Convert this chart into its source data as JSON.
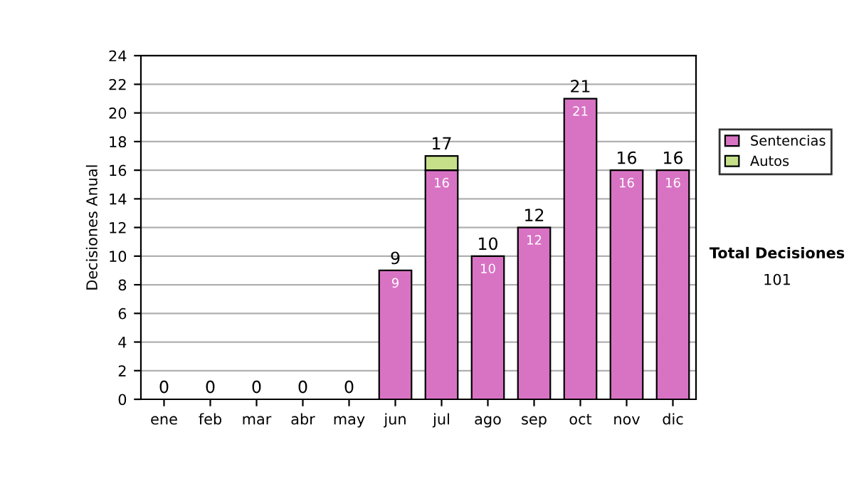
{
  "chart_data": {
    "type": "bar",
    "ylabel": "Decisiones Anual",
    "categories": [
      "ene",
      "feb",
      "mar",
      "abr",
      "may",
      "jun",
      "jul",
      "ago",
      "sep",
      "oct",
      "nov",
      "dic"
    ],
    "stacked": true,
    "series": [
      {
        "name": "Sentencias",
        "color": "#d873c4",
        "values": [
          0,
          0,
          0,
          0,
          0,
          9,
          16,
          10,
          12,
          21,
          16,
          16
        ],
        "value_labels": [
          null,
          null,
          null,
          null,
          null,
          "9",
          "16",
          "10",
          "12",
          "21",
          "16",
          "16"
        ]
      },
      {
        "name": "Autos",
        "color": "#c6e08a",
        "values": [
          0,
          0,
          0,
          0,
          0,
          0,
          1,
          0,
          0,
          0,
          0,
          0
        ]
      }
    ],
    "totals": [
      "0",
      "0",
      "0",
      "0",
      "0",
      "9",
      "17",
      "10",
      "12",
      "21",
      "16",
      "16"
    ],
    "ylim": [
      0,
      24
    ],
    "yticks": [
      0,
      2,
      4,
      6,
      8,
      10,
      12,
      14,
      16,
      18,
      20,
      22,
      24
    ],
    "grid": "y",
    "legend": "right",
    "annotations": [
      "Total Decisiones",
      "101"
    ]
  }
}
